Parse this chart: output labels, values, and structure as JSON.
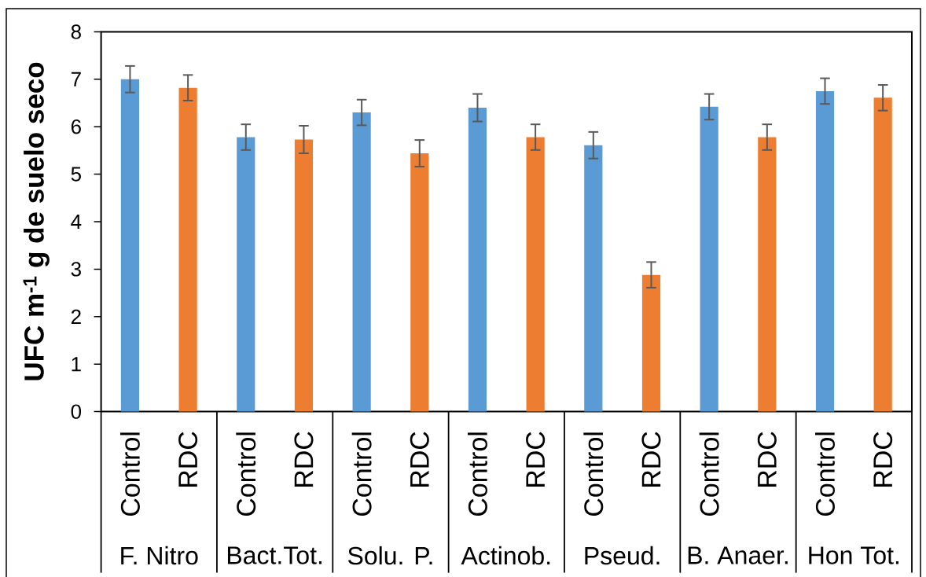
{
  "chart_data": {
    "type": "bar",
    "ylabel": "UFC m$^{-1}$ g de suelo seco",
    "categories": [
      "Control",
      "RDC",
      "Control",
      "RDC",
      "Control",
      "RDC",
      "Control",
      "RDC",
      "Control",
      "RDC",
      "Control",
      "RDC",
      "Control",
      "RDC"
    ],
    "values": [
      7.0,
      6.82,
      5.78,
      5.73,
      6.3,
      5.44,
      6.4,
      5.78,
      5.61,
      2.88,
      6.42,
      5.78,
      6.75,
      6.61
    ],
    "errors": [
      0.28,
      0.27,
      0.27,
      0.29,
      0.27,
      0.28,
      0.29,
      0.27,
      0.28,
      0.27,
      0.27,
      0.27,
      0.27,
      0.27
    ],
    "colors": [
      "#5b9bd5",
      "#ed7d31",
      "#5b9bd5",
      "#ed7d31",
      "#5b9bd5",
      "#ed7d31",
      "#5b9bd5",
      "#ed7d31",
      "#5b9bd5",
      "#ed7d31",
      "#5b9bd5",
      "#ed7d31",
      "#5b9bd5",
      "#ed7d31"
    ],
    "ylim": [
      0,
      8
    ],
    "yticks": [
      0,
      1,
      2,
      3,
      4,
      5,
      6,
      7,
      8
    ],
    "annotations": [
      "F. Nitro",
      "Bact.Tot.",
      "Solu. P.",
      "Actinob.",
      "Pseud.",
      "B. Anaer.",
      "Hon Tot."
    ]
  }
}
